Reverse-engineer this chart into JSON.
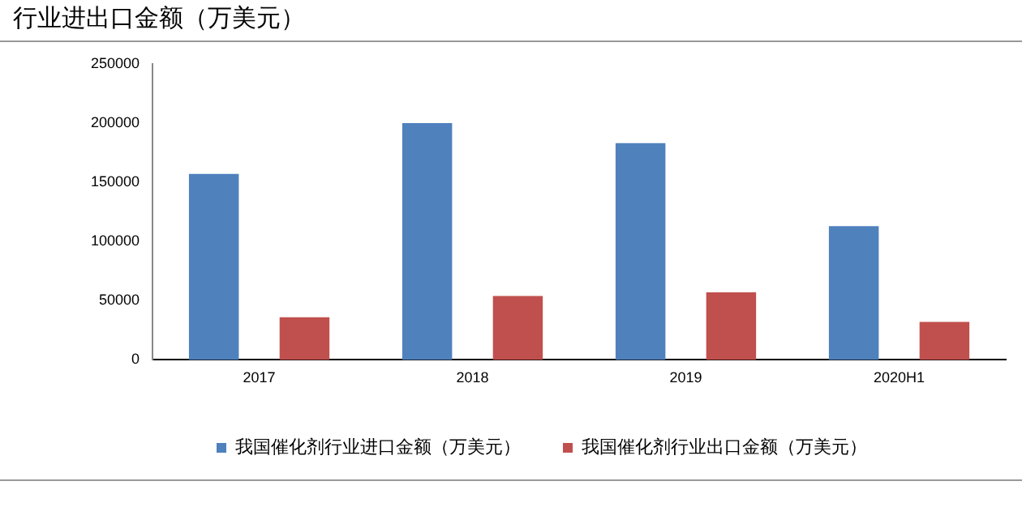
{
  "chart_data": {
    "type": "bar",
    "title": "行业进出口金额（万美元）",
    "categories": [
      "2017",
      "2018",
      "2019",
      "2020H1"
    ],
    "series": [
      {
        "name": "我国催化剂行业进口金额（万美元）",
        "color": "#4f81bd",
        "values": [
          157000,
          200000,
          183000,
          113000
        ]
      },
      {
        "name": "我国催化剂行业出口金额（万美元）",
        "color": "#c0504d",
        "values": [
          36000,
          54000,
          57000,
          32000
        ]
      }
    ],
    "ylim": [
      0,
      250000
    ],
    "yticks": [
      0,
      50000,
      100000,
      150000,
      200000,
      250000
    ],
    "grid": false,
    "legend": "bottom"
  }
}
